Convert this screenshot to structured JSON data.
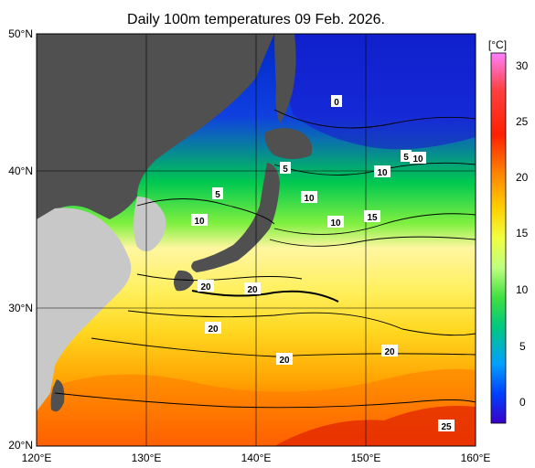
{
  "title": "Daily 100m temperatures 09 Feb. 2026.",
  "map": {
    "lon_labels": [
      "120°E",
      "130°E",
      "140°E",
      "150°E",
      "160°E"
    ],
    "lat_labels": [
      "50°N",
      "40°N",
      "30°N",
      "20°N"
    ],
    "lon_range": [
      120,
      160
    ],
    "lat_range": [
      20,
      50
    ]
  },
  "colorbar": {
    "unit": "[°C]",
    "ticks": [
      "30",
      "25",
      "20",
      "15",
      "10",
      "5",
      "0"
    ],
    "range": [
      -2,
      32
    ],
    "colors": [
      "#3a00c8",
      "#0040ff",
      "#00a0ff",
      "#00d8c0",
      "#00c840",
      "#80f000",
      "#f0ff40",
      "#ffd000",
      "#ff8000",
      "#ff2000",
      "#c00000",
      "#ff80ff"
    ]
  },
  "contour_labels": [
    {
      "text": "0"
    },
    {
      "text": "5"
    },
    {
      "text": "5"
    },
    {
      "text": "10"
    },
    {
      "text": "10"
    },
    {
      "text": "10"
    },
    {
      "text": "10"
    },
    {
      "text": "15"
    },
    {
      "text": "5"
    },
    {
      "text": "10"
    },
    {
      "text": "20"
    },
    {
      "text": "20"
    },
    {
      "text": "20"
    },
    {
      "text": "20"
    },
    {
      "text": "20"
    },
    {
      "text": "25"
    }
  ]
}
